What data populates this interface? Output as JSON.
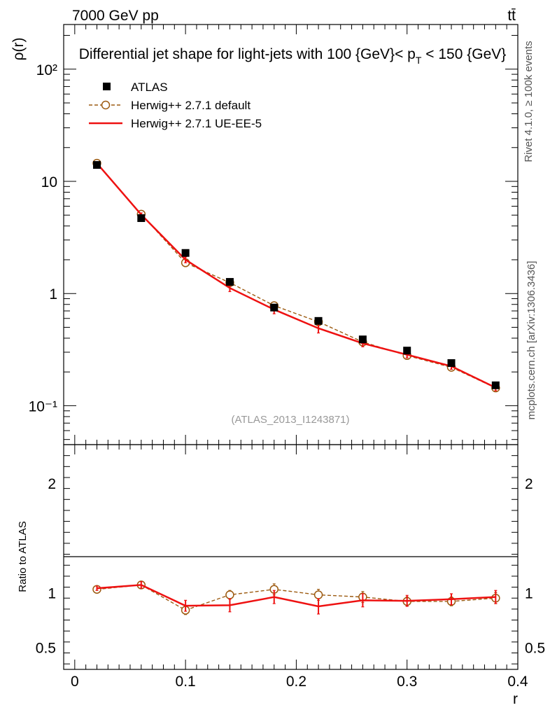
{
  "header": {
    "left_label": "7000 GeV pp",
    "right_label": "tt̄",
    "title_main": "Differential jet shape for light-jets with 100 {GeV}< p",
    "title_sub": "T",
    "title_tail": " < 150 {GeV}"
  },
  "side_labels": {
    "rivet": "Rivet 4.1.0, ≥ 100k events",
    "mcplots": "mcplots.cern.ch [arXiv:1306.3436]"
  },
  "analysis_ref": "(ATLAS_2013_I1243871)",
  "legend": {
    "atlas": "ATLAS",
    "default": "Herwig++ 2.7.1 default",
    "ueee5": "Herwig++ 2.7.1 UE-EE-5"
  },
  "colors": {
    "data": "#000000",
    "default": "#9c5a10",
    "ueee5": "#ee1111"
  },
  "chart_data": [
    {
      "type": "line",
      "panel": "main",
      "xlabel": "",
      "ylabel": "ρ(r)",
      "yscale": "log",
      "xlim": [
        -0.01,
        0.4
      ],
      "ylim": [
        0.045,
        250
      ],
      "ytick_labels": [
        "10⁻¹",
        "1",
        "10",
        "10²"
      ],
      "x": [
        0.02,
        0.06,
        0.1,
        0.14,
        0.18,
        0.22,
        0.26,
        0.3,
        0.34,
        0.38
      ],
      "series": [
        {
          "name": "ATLAS",
          "values": [
            14.0,
            4.7,
            2.3,
            1.27,
            0.75,
            0.57,
            0.39,
            0.31,
            0.24,
            0.152
          ]
        },
        {
          "name": "Herwig++ 2.7.1 default",
          "values": [
            14.5,
            5.1,
            1.88,
            1.25,
            0.78,
            0.56,
            0.37,
            0.28,
            0.22,
            0.144
          ],
          "errors": [
            0.3,
            0.15,
            0.08,
            0.06,
            0.04,
            0.03,
            0.02,
            0.015,
            0.012,
            0.008
          ]
        },
        {
          "name": "Herwig++ 2.7.1 UE-EE-5",
          "values": [
            14.5,
            5.05,
            2.0,
            1.12,
            0.72,
            0.49,
            0.36,
            0.285,
            0.225,
            0.145
          ],
          "errors": [
            0.35,
            0.18,
            0.12,
            0.08,
            0.06,
            0.045,
            0.025,
            0.018,
            0.014,
            0.009
          ]
        }
      ]
    },
    {
      "type": "line",
      "panel": "ratio",
      "xlabel": "r",
      "ylabel": "Ratio to ATLAS",
      "xlim": [
        -0.01,
        0.4
      ],
      "ylim": [
        0.3,
        2.35
      ],
      "xtick_labels": [
        "0",
        "0.1",
        "0.2",
        "0.3",
        "0.4"
      ],
      "ytick_labels": [
        "0.5",
        "1",
        "2"
      ],
      "x": [
        0.02,
        0.06,
        0.1,
        0.14,
        0.18,
        0.22,
        0.26,
        0.3,
        0.34,
        0.38
      ],
      "series": [
        {
          "name": "Herwig++ 2.7.1 default",
          "values": [
            1.03,
            1.07,
            0.84,
            0.98,
            1.03,
            0.98,
            0.96,
            0.92,
            0.92,
            0.95
          ],
          "errors": [
            0.02,
            0.03,
            0.04,
            0.04,
            0.05,
            0.05,
            0.05,
            0.04,
            0.04,
            0.05
          ]
        },
        {
          "name": "Herwig++ 2.7.1 UE-EE-5",
          "values": [
            1.04,
            1.07,
            0.88,
            0.885,
            0.96,
            0.875,
            0.93,
            0.925,
            0.94,
            0.96
          ],
          "errors": [
            0.02,
            0.03,
            0.05,
            0.06,
            0.06,
            0.07,
            0.06,
            0.05,
            0.05,
            0.06
          ]
        }
      ]
    }
  ]
}
